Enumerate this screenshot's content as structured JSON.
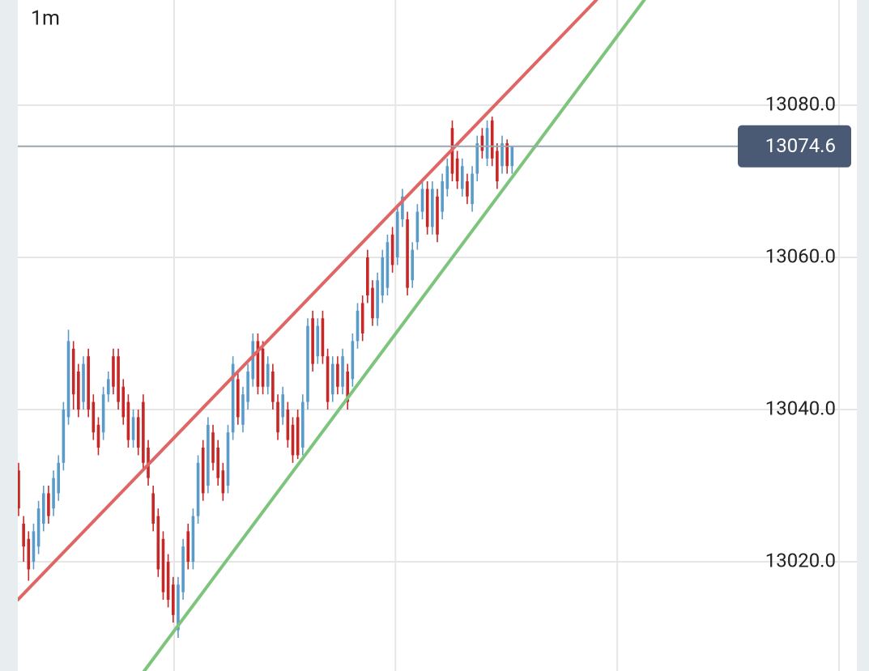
{
  "chart_data": {
    "type": "ohlc",
    "title": "1m",
    "xlim": [
      -0.16,
      170.6
    ],
    "xticks": [
      31.2,
      75.6,
      120.1,
      164.6
    ],
    "ylim": [
      13005.64,
      13093.83
    ],
    "yticks": [
      {
        "value": 13020,
        "label": "13020.0"
      },
      {
        "value": 13040,
        "label": "13040.0"
      },
      {
        "value": 13060,
        "label": "13060.0"
      },
      {
        "value": 13080,
        "label": "13080.0"
      }
    ],
    "grid": true,
    "up_color": "#5b9bc8",
    "down_color": "#c62828",
    "last_price": 13074.6,
    "series": [
      {
        "open": [
          13032,
          13025,
          13023,
          13020,
          13022,
          13025,
          13029,
          13027,
          13029,
          13033,
          13039,
          13048,
          13045,
          13041,
          13047,
          13041,
          13038,
          13037,
          13042,
          13047,
          13047,
          13043,
          13041,
          13036,
          13039,
          13041,
          13035,
          13029,
          13026,
          13023,
          13020,
          13017,
          13011,
          13016,
          13024,
          13020,
          13026,
          13035,
          13030,
          13037,
          13035,
          13032,
          13030,
          13037,
          13044,
          13038,
          13041,
          13044,
          13049,
          13048,
          13043,
          13045,
          13041,
          13039,
          13040,
          13038,
          13039,
          13035,
          13041,
          13052,
          13047,
          13052,
          13047,
          13042,
          13046,
          13043,
          13045,
          13044,
          13049,
          13054,
          13060,
          13056,
          13052,
          13055,
          13056,
          13063,
          13060,
          13065,
          13065,
          13057,
          13062,
          13066,
          13069,
          13064,
          13068,
          13066,
          13069,
          13077,
          13073,
          13069,
          13070,
          13067,
          13071,
          13076,
          13073,
          13078,
          13074,
          13072,
          13075,
          13072
        ],
        "high": [
          13033,
          13026,
          13024,
          13025,
          13028,
          13030,
          13030,
          13032,
          13034,
          13041,
          13050.5,
          13049,
          13046,
          13047,
          13048,
          13042,
          13039,
          13043,
          13045,
          13048,
          13048,
          13044,
          13042,
          13040,
          13040,
          13042,
          13036,
          13030,
          13027,
          13024,
          13021,
          13018,
          13018,
          13023,
          13025,
          13027,
          13034,
          13036,
          13039,
          13038,
          13036,
          13033,
          13038,
          13047,
          13045,
          13043,
          13046,
          13050,
          13050,
          13049,
          13047,
          13046,
          13042,
          13043,
          13041,
          13039,
          13040,
          13042,
          13052,
          13053,
          13052,
          13053,
          13048,
          13047,
          13047,
          13048,
          13046,
          13050,
          13054,
          13055,
          13061,
          13057,
          13058,
          13061,
          13063,
          13064,
          13067,
          13069,
          13066,
          13062,
          13067,
          13070,
          13070,
          13070,
          13069,
          13071,
          13073,
          13078,
          13074,
          13073,
          13071,
          13072,
          13076,
          13077,
          13078,
          13078.5,
          13075,
          13076,
          13075.5,
          13074.6
        ],
        "low": [
          13026,
          13020,
          13017.5,
          13019,
          13021,
          13024,
          13025,
          13026,
          13028,
          13032,
          13038,
          13040,
          13039,
          13040,
          13039,
          13036,
          13034,
          13036,
          13041,
          13042,
          13040,
          13038,
          13035,
          13035,
          13034,
          13032,
          13030,
          13024,
          13018,
          13015,
          13014,
          13012,
          13010,
          13015,
          13019,
          13019,
          13025,
          13028,
          13029,
          13032,
          13030,
          13028,
          13029,
          13036,
          13038,
          13037,
          13040,
          13043,
          13042,
          13042,
          13042,
          13040,
          13036,
          13038,
          13035,
          13033,
          13033.5,
          13034,
          13040,
          13045,
          13046,
          13046,
          13040,
          13041,
          13042,
          13042,
          13040,
          13043,
          13048,
          13049,
          13054,
          13051,
          13051,
          13054,
          13055,
          13058,
          13059,
          13064,
          13055,
          13056,
          13061,
          13065,
          13063,
          13063,
          13062,
          13065,
          13068,
          13070,
          13069,
          13068,
          13067,
          13066,
          13070,
          13073,
          13072,
          13072,
          13069,
          13071,
          13071,
          13071
        ],
        "close": [
          13027,
          13022,
          13019,
          13024,
          13027,
          13029,
          13026,
          13031,
          13033,
          13040,
          13049,
          13042,
          13040,
          13046,
          13040,
          13037,
          13035,
          13042,
          13044,
          13043,
          13041,
          13039,
          13036,
          13039,
          13035,
          13033,
          13031,
          13025,
          13019,
          13016,
          13015,
          13013,
          13017,
          13022,
          13020,
          13026,
          13033,
          13029,
          13038,
          13033,
          13031,
          13029,
          13037,
          13046,
          13039,
          13042,
          13045,
          13049,
          13043,
          13043,
          13046,
          13041,
          13037,
          13042,
          13036,
          13034,
          13034,
          13041,
          13051,
          13046,
          13051,
          13047,
          13041,
          13046,
          13043,
          13047,
          13041,
          13049,
          13053,
          13050,
          13055,
          13052,
          13057,
          13060,
          13062,
          13059,
          13066,
          13068,
          13056,
          13061,
          13066,
          13069,
          13064,
          13069,
          13063,
          13070,
          13072,
          13071,
          13070,
          13072,
          13068,
          13071,
          13075,
          13074,
          13077,
          13073,
          13070,
          13075,
          13072,
          13074.6
        ]
      }
    ],
    "lines": [
      {
        "color": "#e06666",
        "x": [
          -0.16,
          115.9
        ],
        "y": [
          13015.0,
          13093.83
        ]
      },
      {
        "color": "#7dc47d",
        "x": [
          25.2,
          125.5
        ],
        "y": [
          13005.64,
          13093.83
        ]
      }
    ]
  }
}
